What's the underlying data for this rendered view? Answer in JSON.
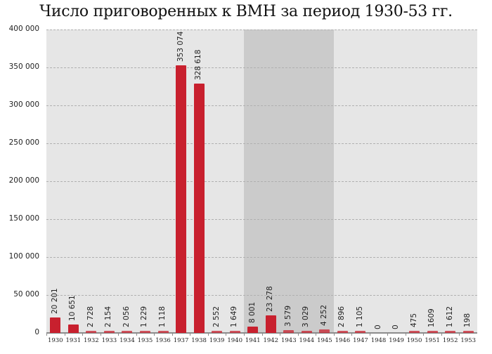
{
  "title": "Число приговоренных к ВМН за период 1930-53 гг.",
  "colors": {
    "bar": "#c8202e",
    "plot_background": "#e6e6e6",
    "war_shade": "#cbcbcb",
    "gridline": "#b0b0b0"
  },
  "y_ticks": [
    "0",
    "50 000",
    "100 000",
    "150 000",
    "200 000",
    "250 000",
    "300 000",
    "350 000",
    "400 000"
  ],
  "chart_data": {
    "type": "bar",
    "title": "Число приговоренных к ВМН за период 1930-53 гг.",
    "xlabel": "",
    "ylabel": "",
    "ylim": [
      0,
      400000
    ],
    "grid": true,
    "legend": null,
    "categories": [
      "1930",
      "1931",
      "1932",
      "1933",
      "1934",
      "1935",
      "1936",
      "1937",
      "1938",
      "1939",
      "1940",
      "1941",
      "1942",
      "1943",
      "1944",
      "1945",
      "1946",
      "1947",
      "1948",
      "1949",
      "1950",
      "1951",
      "1952",
      "1953"
    ],
    "values": [
      20201,
      10651,
      2728,
      2154,
      2056,
      1229,
      1118,
      353074,
      328618,
      2552,
      1649,
      8001,
      23278,
      3579,
      3029,
      4252,
      2896,
      1105,
      0,
      0,
      475,
      1609,
      1612,
      198
    ],
    "value_labels": [
      "20 201",
      "10 651",
      "2 728",
      "2 154",
      "2 056",
      "1 229",
      "1 118",
      "353 074",
      "328 618",
      "2 552",
      "1 649",
      "8 001",
      "23 278",
      "3 579",
      "3 029",
      "4 252",
      "2 896",
      "1 105",
      "0",
      "0",
      "475",
      "1609",
      "1 612",
      "198"
    ],
    "y_tick_labels": [
      "0",
      "50 000",
      "100 000",
      "150 000",
      "200 000",
      "250 000",
      "300 000",
      "350 000",
      "400 000"
    ],
    "annotations": [
      {
        "type": "shaded_region",
        "from": "1941",
        "to": "1945"
      }
    ]
  }
}
